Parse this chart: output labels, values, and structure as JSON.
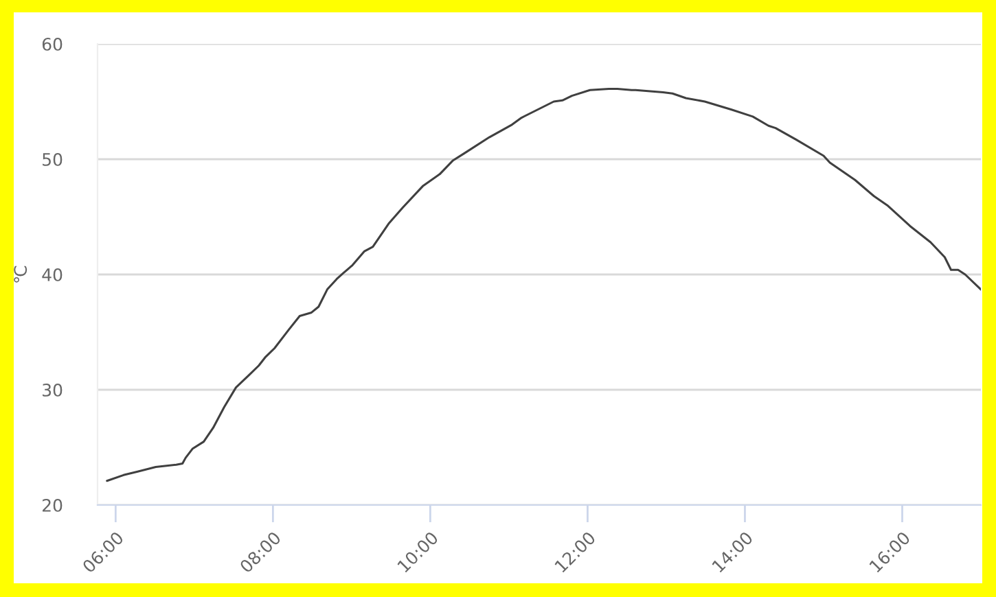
{
  "chart_data": {
    "type": "line",
    "ylabel": "℃",
    "color": "#404040",
    "x": [
      5.89,
      6.1,
      6.28,
      6.51,
      6.77,
      6.85,
      6.89,
      6.98,
      7.12,
      7.24,
      7.38,
      7.53,
      7.7,
      7.82,
      7.9,
      8.02,
      8.2,
      8.34,
      8.49,
      8.58,
      8.69,
      8.81,
      8.89,
      9.01,
      9.16,
      9.27,
      9.47,
      9.65,
      9.91,
      10.12,
      10.29,
      10.43,
      10.75,
      11.04,
      11.16,
      11.57,
      11.68,
      11.8,
      12.03,
      12.27,
      12.38,
      12.56,
      12.61,
      12.96,
      13.08,
      13.25,
      13.49,
      13.83,
      14.1,
      14.3,
      14.39,
      14.65,
      15.0,
      15.08,
      15.4,
      15.64,
      15.81,
      16.1,
      16.36,
      16.54,
      16.62,
      16.71,
      16.8,
      17.0
    ],
    "values": [
      22.1,
      22.6,
      22.9,
      23.3,
      23.5,
      23.6,
      24.1,
      24.9,
      25.5,
      26.7,
      28.5,
      30.2,
      31.3,
      32.1,
      32.8,
      33.6,
      35.2,
      36.4,
      36.7,
      37.2,
      38.7,
      39.6,
      40.1,
      40.8,
      42.0,
      42.4,
      44.4,
      45.8,
      47.7,
      48.7,
      49.9,
      50.5,
      51.9,
      53.0,
      53.6,
      55.0,
      55.1,
      55.5,
      56.0,
      56.1,
      56.1,
      56.0,
      56.0,
      55.8,
      55.7,
      55.3,
      55.0,
      54.3,
      53.7,
      52.9,
      52.7,
      51.7,
      50.3,
      49.7,
      48.2,
      46.8,
      46.0,
      44.2,
      42.8,
      41.5,
      40.4,
      40.4,
      40.0,
      38.7
    ],
    "xlim": [
      5.77,
      17.0
    ],
    "ylim": [
      20,
      60
    ],
    "xticks": [
      {
        "value": 6,
        "label": "06:00"
      },
      {
        "value": 8,
        "label": "08:00"
      },
      {
        "value": 10,
        "label": "10:00"
      },
      {
        "value": 12,
        "label": "12:00"
      },
      {
        "value": 14,
        "label": "14:00"
      },
      {
        "value": 16,
        "label": "16:00"
      }
    ],
    "yticks": [
      20,
      30,
      40,
      50,
      60
    ],
    "grid": "y"
  }
}
